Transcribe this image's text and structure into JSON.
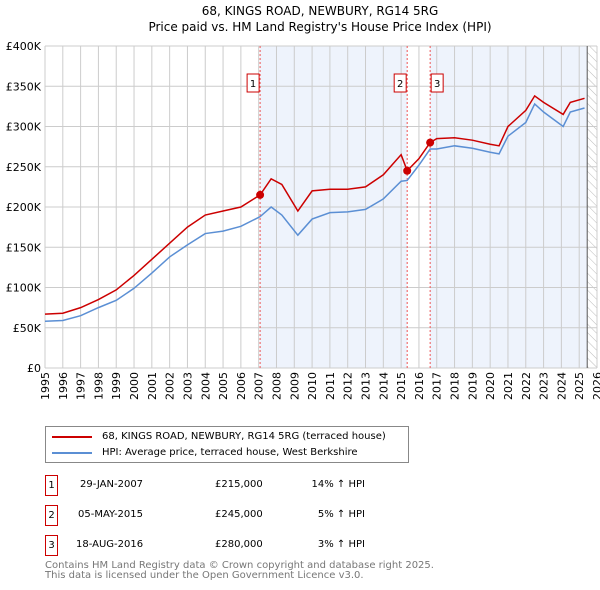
{
  "chart_data": {
    "type": "line",
    "title": "68, KINGS ROAD, NEWBURY, RG14 5RG",
    "subtitle": "Price paid vs. HM Land Registry's House Price Index (HPI)",
    "xlim": [
      1995,
      2026
    ],
    "ylim": [
      0,
      400000
    ],
    "x_ticks": [
      "1995",
      "1996",
      "1997",
      "1998",
      "1999",
      "2000",
      "2001",
      "2002",
      "2003",
      "2004",
      "2005",
      "2006",
      "2007",
      "2008",
      "2009",
      "2010",
      "2011",
      "2012",
      "2013",
      "2014",
      "2015",
      "2016",
      "2017",
      "2018",
      "2019",
      "2020",
      "2021",
      "2022",
      "2023",
      "2024",
      "2025",
      "2026"
    ],
    "y_ticks": [
      {
        "v": 0,
        "label": "£0"
      },
      {
        "v": 50000,
        "label": "£50K"
      },
      {
        "v": 100000,
        "label": "£100K"
      },
      {
        "v": 150000,
        "label": "£150K"
      },
      {
        "v": 200000,
        "label": "£200K"
      },
      {
        "v": 250000,
        "label": "£250K"
      },
      {
        "v": 300000,
        "label": "£300K"
      },
      {
        "v": 350000,
        "label": "£350K"
      },
      {
        "v": 400000,
        "label": "£400K"
      }
    ],
    "series": [
      {
        "name": "68, KINGS ROAD, NEWBURY, RG14 5RG (terraced house)",
        "color": "#cc0000",
        "x": [
          1995,
          1996,
          1997,
          1998,
          1999,
          2000,
          2001,
          2002,
          2003,
          2004,
          2005,
          2006,
          2007.08,
          2007.7,
          2008.3,
          2009.2,
          2010,
          2011,
          2012,
          2013,
          2014,
          2015.0,
          2015.34,
          2016,
          2016.63,
          2017,
          2018,
          2019,
          2020,
          2020.5,
          2021,
          2022,
          2022.5,
          2023,
          2024.1,
          2024.5,
          2025.3
        ],
        "y": [
          67000,
          68000,
          75000,
          85000,
          97000,
          115000,
          135000,
          155000,
          175000,
          190000,
          195000,
          200000,
          215000,
          235000,
          228000,
          195000,
          220000,
          222000,
          222000,
          225000,
          240000,
          265000,
          245000,
          260000,
          280000,
          285000,
          286000,
          283000,
          278000,
          276000,
          300000,
          320000,
          338000,
          330000,
          315000,
          330000,
          335000
        ]
      },
      {
        "name": "HPI: Average price, terraced house, West Berkshire",
        "color": "#5b8fd4",
        "x": [
          1995,
          1996,
          1997,
          1998,
          1999,
          2000,
          2001,
          2002,
          2003,
          2004,
          2005,
          2006,
          2007.08,
          2007.7,
          2008.3,
          2009.2,
          2010,
          2011,
          2012,
          2013,
          2014,
          2015.0,
          2015.34,
          2016,
          2016.63,
          2017,
          2018,
          2019,
          2020,
          2020.5,
          2021,
          2022,
          2022.5,
          2023,
          2024.1,
          2024.5,
          2025.3
        ],
        "y": [
          58000,
          59000,
          65000,
          75000,
          84000,
          99000,
          118000,
          138000,
          153000,
          167000,
          170000,
          176000,
          188000,
          200000,
          190000,
          165000,
          185000,
          193000,
          194000,
          197000,
          210000,
          232000,
          233000,
          252000,
          272000,
          272000,
          276000,
          273000,
          268000,
          266000,
          288000,
          305000,
          328000,
          318000,
          300000,
          318000,
          323000
        ]
      }
    ],
    "sales": [
      {
        "n": "1",
        "x": 2007.08,
        "y": 215000,
        "date": "29-JAN-2007",
        "price": "£215,000",
        "delta": "14% ↑ HPI"
      },
      {
        "n": "2",
        "x": 2015.34,
        "y": 245000,
        "date": "05-MAY-2015",
        "price": "£245,000",
        "delta": "5% ↑ HPI"
      },
      {
        "n": "3",
        "x": 2016.63,
        "y": 280000,
        "date": "18-AUG-2016",
        "price": "£280,000",
        "delta": "3% ↑ HPI"
      }
    ],
    "legend": "bottom"
  },
  "footer": [
    "Contains HM Land Registry data © Crown copyright and database right 2025.",
    "This data is licensed under the Open Government Licence v3.0."
  ]
}
